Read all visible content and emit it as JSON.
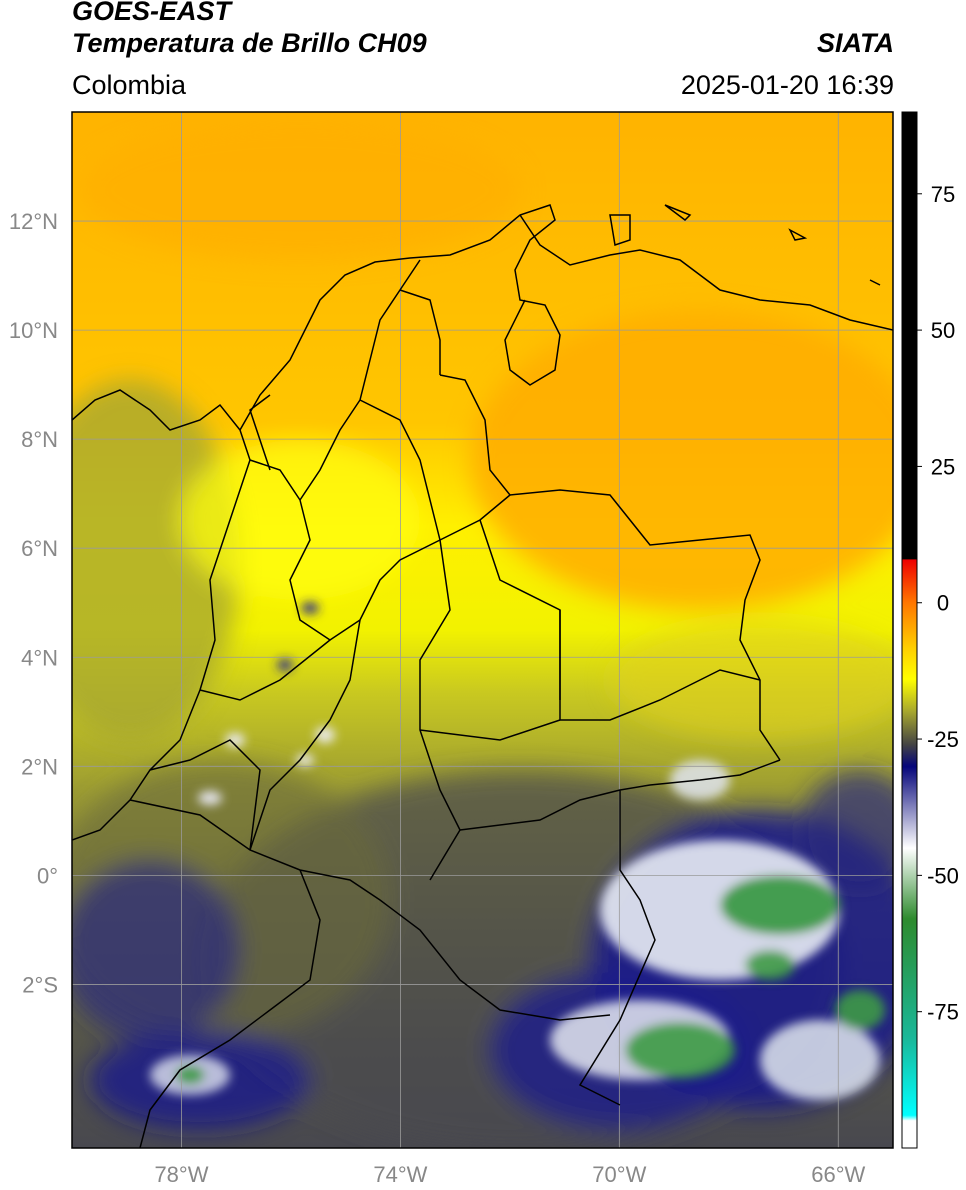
{
  "header": {
    "satellite": "GOES-EAST",
    "product": "Temperatura de Brillo CH09",
    "region": "Colombia",
    "agency": "SIATA",
    "datetime": "2025-01-20 16:39"
  },
  "map": {
    "lon_range": [
      -80,
      -65
    ],
    "lat_range": [
      -5,
      14
    ],
    "lon_ticks": [
      {
        "value": -78,
        "label": "78°W"
      },
      {
        "value": -74,
        "label": "74°W"
      },
      {
        "value": -70,
        "label": "70°W"
      },
      {
        "value": -66,
        "label": "66°W"
      }
    ],
    "lat_ticks": [
      {
        "value": 12,
        "label": "12°N"
      },
      {
        "value": 10,
        "label": "10°N"
      },
      {
        "value": 8,
        "label": "8°N"
      },
      {
        "value": 6,
        "label": "6°N"
      },
      {
        "value": 4,
        "label": "4°N"
      },
      {
        "value": 2,
        "label": "2°N"
      },
      {
        "value": 0,
        "label": "0°"
      },
      {
        "value": -2,
        "label": "2°S"
      }
    ],
    "grid": true,
    "colors": {
      "border": "#000000",
      "grid": "#9a9a9a"
    }
  },
  "colorbar": {
    "range": [
      -100,
      90
    ],
    "ticks": [
      {
        "value": 75,
        "label": "75"
      },
      {
        "value": 50,
        "label": "50"
      },
      {
        "value": 25,
        "label": "25"
      },
      {
        "value": 0,
        "label": "0"
      },
      {
        "value": -25,
        "label": "-25"
      },
      {
        "value": -50,
        "label": "-50"
      },
      {
        "value": -75,
        "label": "-75"
      }
    ],
    "stops": [
      {
        "value": 90,
        "color": "#000000"
      },
      {
        "value": 8,
        "color": "#000000"
      },
      {
        "value": 7.9,
        "color": "#ee0000"
      },
      {
        "value": 0,
        "color": "#ff7700"
      },
      {
        "value": -8,
        "color": "#ffcc00"
      },
      {
        "value": -14,
        "color": "#ffff00"
      },
      {
        "value": -20,
        "color": "#a6a62e"
      },
      {
        "value": -26,
        "color": "#444444"
      },
      {
        "value": -30,
        "color": "#05057a"
      },
      {
        "value": -45,
        "color": "#ffffff"
      },
      {
        "value": -58,
        "color": "#2e8b2e"
      },
      {
        "value": -80,
        "color": "#1ab89a"
      },
      {
        "value": -94,
        "color": "#00ffff"
      },
      {
        "value": -95,
        "color": "#ffffff"
      },
      {
        "value": -100,
        "color": "#ffffff"
      }
    ]
  }
}
